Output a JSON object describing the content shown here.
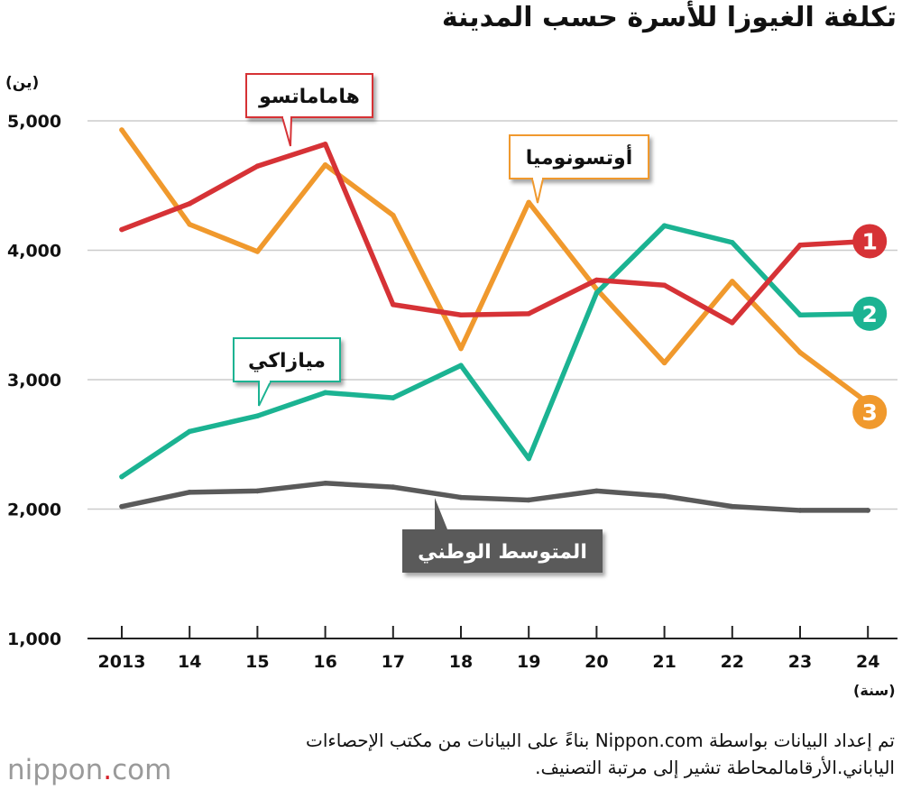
{
  "title": "تكلفة الغيوزا للأسرة حسب المدينة",
  "y_unit": "(ين)",
  "x_unit": "(سنة)",
  "footnote": "تم إعداد البيانات بواسطة Nippon.com بناءً على البيانات من مكتب الإحصاءات الياباني.الأرقامالمحاطة تشير إلى مرتبة التصنيف.",
  "logo": {
    "name": "nippon",
    "dot": ".",
    "suffix": "com"
  },
  "colors": {
    "hamamatsu": "#d63236",
    "utsunomiya": "#f0992d",
    "miyazaki": "#1bb392",
    "national": "#5a5a5a",
    "grid": "#cccccc"
  },
  "chart_data": {
    "type": "line",
    "title": "تكلفة الغيوزا للأسرة حسب المدينة",
    "xlabel": "(سنة)",
    "ylabel": "(ين)",
    "ylim": [
      1000,
      5000
    ],
    "yticks": [
      1000,
      2000,
      3000,
      4000,
      5000
    ],
    "ytick_labels": [
      "1,000",
      "2,000",
      "3,000",
      "4,000",
      "5,000"
    ],
    "categories": [
      "2013",
      "14",
      "15",
      "16",
      "17",
      "18",
      "19",
      "20",
      "21",
      "22",
      "23",
      "24"
    ],
    "series": [
      {
        "key": "hamamatsu",
        "name": "هاماماتسو",
        "rank": "1",
        "values": [
          4160,
          4360,
          4650,
          4820,
          3580,
          3500,
          3510,
          3770,
          3730,
          3440,
          4040,
          4070
        ]
      },
      {
        "key": "miyazaki",
        "name": "ميازاكي",
        "rank": "2",
        "values": [
          2250,
          2600,
          2720,
          2900,
          2860,
          3110,
          2390,
          3670,
          4190,
          4060,
          3500,
          3510
        ]
      },
      {
        "key": "utsunomiya",
        "name": "أوتسونوميا",
        "rank": "3",
        "values": [
          4930,
          4200,
          3990,
          4660,
          4270,
          3240,
          4370,
          3700,
          3130,
          3760,
          3210,
          2820
        ]
      },
      {
        "key": "national",
        "name": "المتوسط الوطني",
        "rank": "",
        "values": [
          2020,
          2130,
          2140,
          2200,
          2170,
          2090,
          2070,
          2140,
          2100,
          2020,
          1990,
          1990
        ]
      }
    ]
  }
}
